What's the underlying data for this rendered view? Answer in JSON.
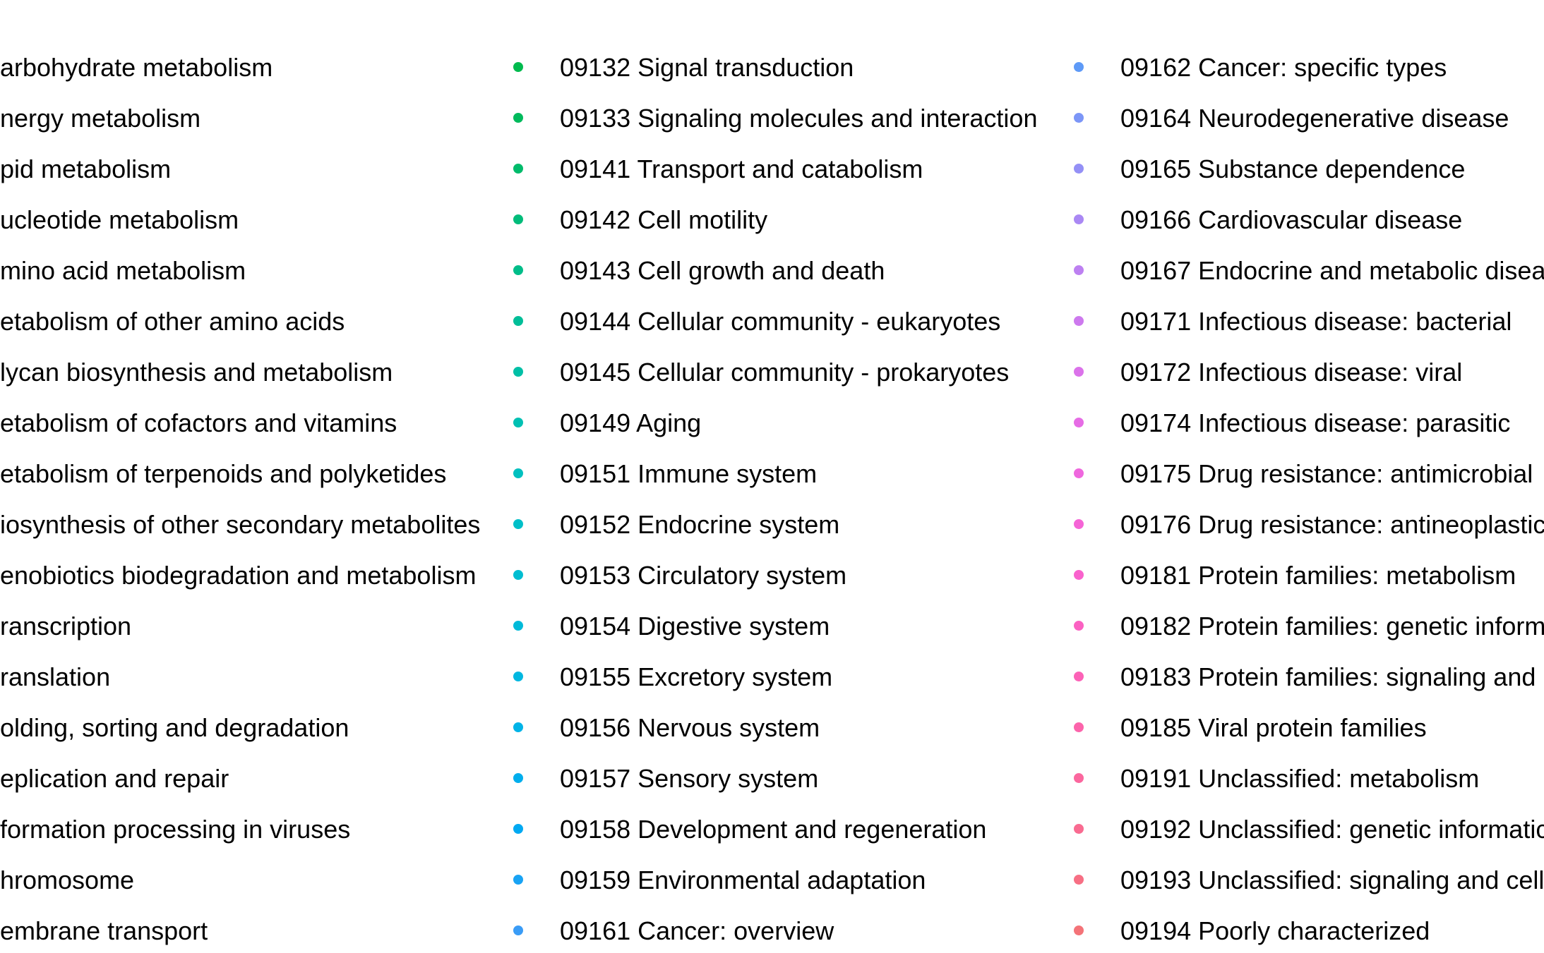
{
  "chart_data": {
    "type": "legend",
    "title": "",
    "columns": [
      {
        "items": [
          {
            "label": "arbohydrate metabolism",
            "color": "#28b83a"
          },
          {
            "label": "nergy metabolism",
            "color": "#26b83c"
          },
          {
            "label": "pid metabolism",
            "color": "#24b83e"
          },
          {
            "label": "ucleotide metabolism",
            "color": "#22b841"
          },
          {
            "label": "mino acid metabolism",
            "color": "#20b843"
          },
          {
            "label": "etabolism of other amino acids",
            "color": "#1eb846"
          },
          {
            "label": "lycan biosynthesis and metabolism",
            "color": "#1cb848"
          },
          {
            "label": "etabolism of cofactors and vitamins",
            "color": "#1ab84b"
          },
          {
            "label": "etabolism of terpenoids and polyketides",
            "color": "#18b84e"
          },
          {
            "label": "iosynthesis of other secondary metabolites",
            "color": "#16b851"
          },
          {
            "label": "enobiotics biodegradation and metabolism",
            "color": "#14b854"
          },
          {
            "label": "ranscription",
            "color": "#12b857"
          },
          {
            "label": "ranslation",
            "color": "#10b85a"
          },
          {
            "label": "olding, sorting and degradation",
            "color": "#0eb85d"
          },
          {
            "label": "eplication and repair",
            "color": "#0cb860"
          },
          {
            "label": "formation processing in viruses",
            "color": "#0ab863"
          },
          {
            "label": "hromosome",
            "color": "#08b866"
          },
          {
            "label": "embrane transport",
            "color": "#06b869"
          }
        ]
      },
      {
        "items": [
          {
            "label": "09132 Signal transduction",
            "color": "#00ba4e"
          },
          {
            "label": "09133 Signaling molecules and interaction",
            "color": "#00ba5c"
          },
          {
            "label": "09141 Transport and catabolism",
            "color": "#00bb6b"
          },
          {
            "label": "09142 Cell motility",
            "color": "#00bc7a"
          },
          {
            "label": "09143 Cell growth and death",
            "color": "#00bd89"
          },
          {
            "label": "09144 Cellular community - eukaryotes",
            "color": "#00be98"
          },
          {
            "label": "09145 Cellular community - prokaryotes",
            "color": "#00bfa6"
          },
          {
            "label": "09149 Aging",
            "color": "#00c0b3"
          },
          {
            "label": "09151 Immune system",
            "color": "#00c0bf"
          },
          {
            "label": "09152 Endocrine system",
            "color": "#00bfc8"
          },
          {
            "label": "09153 Circulatory system",
            "color": "#00bdd1"
          },
          {
            "label": "09154 Digestive system",
            "color": "#00bad9"
          },
          {
            "label": "09155 Excretory system",
            "color": "#00b7e0"
          },
          {
            "label": "09156 Nervous system",
            "color": "#00b3e7"
          },
          {
            "label": "09157 Sensory system",
            "color": "#00aeed"
          },
          {
            "label": "09158 Development and regeneration",
            "color": "#00a9f2"
          },
          {
            "label": "09159 Environmental adaptation",
            "color": "#18a3f4"
          },
          {
            "label": "09161 Cancer: overview",
            "color": "#3a9cf6"
          }
        ]
      },
      {
        "items": [
          {
            "label": "09162 Cancer: specific types",
            "color": "#5e9af7"
          },
          {
            "label": "09164 Neurodegenerative disease",
            "color": "#7c96f7"
          },
          {
            "label": "09165 Substance dependence",
            "color": "#9490f6"
          },
          {
            "label": "09166 Cardiovascular disease",
            "color": "#aa88f4"
          },
          {
            "label": "09167 Endocrine and metabolic disea",
            "color": "#bd80f1"
          },
          {
            "label": "09171 Infectious disease: bacterial",
            "color": "#cd79ee"
          },
          {
            "label": "09172 Infectious disease: viral",
            "color": "#db72ea"
          },
          {
            "label": "09174 Infectious disease: parasitic",
            "color": "#e66ce5"
          },
          {
            "label": "09175 Drug resistance: antimicrobial",
            "color": "#ef67de"
          },
          {
            "label": "09176 Drug resistance: antineoplastic",
            "color": "#f564d6"
          },
          {
            "label": "09181 Protein families: metabolism",
            "color": "#f962cd"
          },
          {
            "label": "09182 Protein families: genetic inform",
            "color": "#fb61c2"
          },
          {
            "label": "09183 Protein families: signaling and",
            "color": "#fc62b7"
          },
          {
            "label": "09185 Viral protein families",
            "color": "#fc64ab"
          },
          {
            "label": "09191 Unclassified: metabolism",
            "color": "#fb679e"
          },
          {
            "label": "09192 Unclassified: genetic informatic",
            "color": "#f96b91"
          },
          {
            "label": "09193 Unclassified: signaling and cell",
            "color": "#f76f84"
          },
          {
            "label": "09194 Poorly characterized",
            "color": "#f47378"
          }
        ]
      }
    ]
  }
}
